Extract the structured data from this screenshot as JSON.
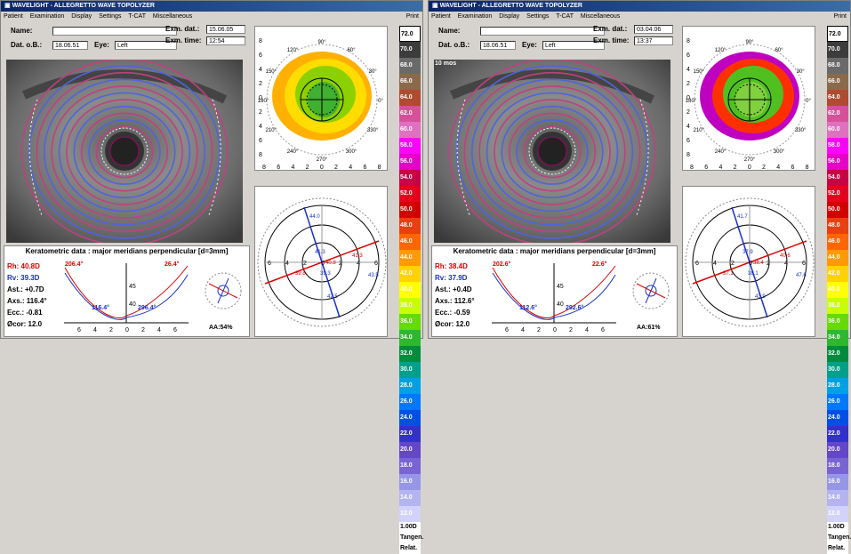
{
  "windows": [
    {
      "title": "WAVELIGHT - ALLEGRETTO WAVE TOPOLYZER",
      "menu": [
        "Patient",
        "Examination",
        "Display",
        "Settings",
        "T-CAT",
        "Miscellaneous"
      ],
      "print": "Print",
      "name_label": "Name:",
      "name": "",
      "dob_label": "Dat. o.B.:",
      "dob": "18.06.51",
      "eye_label": "Eye:",
      "eye": "Left",
      "exm_dat_label": "Exm. dat.:",
      "exm_dat": "15.06.05",
      "exm_time_label": "Exm. time:",
      "exm_time": "12:54",
      "tag": "",
      "kdata_title": "Keratometric data : major meridians perpendicular [d=3mm]",
      "rh": "Rh: 40.8D",
      "rv": "Rv: 39.3D",
      "ast": "Ast.: +0.7D",
      "axs": "Axs.: 116.4°",
      "ecc": "Ecc.: -0.81",
      "ocor": "Øcor: 12.0",
      "aa": "AA:54%",
      "k_top_left": "206.4°",
      "k_top_right": "26.4°",
      "k_bot_mid": "116.4°",
      "k_bot_right": "296.4°",
      "k_y45": "45",
      "k_y40": "40",
      "axis_labels": [
        "44.0",
        "41.3",
        "40.8",
        "39.3",
        "39.8",
        "41.3",
        "43.5",
        "42.5"
      ]
    },
    {
      "title": "WAVELIGHT - ALLEGRETTO WAVE TOPOLYZER",
      "menu": [
        "Patient",
        "Examination",
        "Display",
        "Settings",
        "T-CAT",
        "Miscellaneous"
      ],
      "print": "Print",
      "name_label": "Name:",
      "name": "",
      "dob_label": "Dat. o.B.:",
      "dob": "18.06.51",
      "eye_label": "Eye:",
      "eye": "Left",
      "exm_dat_label": "Exm. dat.:",
      "exm_dat": "03.04.06",
      "exm_time_label": "Exm. time:",
      "exm_time": "13:37",
      "tag": "10 mos",
      "kdata_title": "Keratometric data : major meridians perpendicular [d=3mm]",
      "rh": "Rh: 38.4D",
      "rv": "Rv: 37.9D",
      "ast": "Ast.: +0.4D",
      "axs": "Axs.: 112.6°",
      "ecc": "Ecc.: -0.59",
      "ocor": "Øcor: 12.0",
      "aa": "AA:61%",
      "k_top_left": "202.6°",
      "k_top_right": "22.6°",
      "k_bot_mid": "112.6°",
      "k_bot_right": "292.6°",
      "k_y45": "45",
      "k_y40": "40",
      "axis_labels": [
        "41.7",
        "37.9",
        "38.4",
        "38.1",
        "37.1",
        "40.6",
        "47.6",
        "43.9"
      ]
    }
  ],
  "scale": [
    {
      "v": "72.0",
      "c": "#ffffff",
      "sel": true
    },
    {
      "v": "70.0",
      "c": "#3c3c3c"
    },
    {
      "v": "68.0",
      "c": "#6a6a6a"
    },
    {
      "v": "66.0",
      "c": "#8a6a4a"
    },
    {
      "v": "64.0",
      "c": "#b04a30"
    },
    {
      "v": "62.0",
      "c": "#d6509a"
    },
    {
      "v": "60.0",
      "c": "#e070c0"
    },
    {
      "v": "58.0",
      "c": "#ff00ff"
    },
    {
      "v": "56.0",
      "c": "#e600c8"
    },
    {
      "v": "54.0",
      "c": "#c80046"
    },
    {
      "v": "52.0",
      "c": "#e6001e"
    },
    {
      "v": "50.0",
      "c": "#d30000"
    },
    {
      "v": "48.0",
      "c": "#e84010"
    },
    {
      "v": "46.0",
      "c": "#ff6600"
    },
    {
      "v": "44.0",
      "c": "#ff9a00"
    },
    {
      "v": "42.0",
      "c": "#ffd200"
    },
    {
      "v": "40.0",
      "c": "#ffff00"
    },
    {
      "v": "38.0",
      "c": "#c8ff00"
    },
    {
      "v": "36.0",
      "c": "#64dc00"
    },
    {
      "v": "34.0",
      "c": "#2eb82e"
    },
    {
      "v": "32.0",
      "c": "#008c3c"
    },
    {
      "v": "30.0",
      "c": "#00a08c"
    },
    {
      "v": "28.0",
      "c": "#00a0e6"
    },
    {
      "v": "26.0",
      "c": "#0078ff"
    },
    {
      "v": "24.0",
      "c": "#0050e6"
    },
    {
      "v": "22.0",
      "c": "#3232c8"
    },
    {
      "v": "20.0",
      "c": "#6446c8"
    },
    {
      "v": "18.0",
      "c": "#7864d2"
    },
    {
      "v": "16.0",
      "c": "#9696e6"
    },
    {
      "v": "14.0",
      "c": "#b4b4f0"
    },
    {
      "v": "12.0",
      "c": "#d2d2fa"
    }
  ],
  "scale_step": "1.00D",
  "scale_mode1": "Tangen.",
  "scale_mode2": "Relat.",
  "map_ticks": [
    "8",
    "6",
    "4",
    "2",
    "0",
    "2",
    "4",
    "6",
    "8"
  ],
  "map_angles": [
    "90°",
    "60°",
    "120°",
    "30°",
    "150°",
    "0°",
    "180°",
    "330°",
    "210°",
    "300°",
    "240°",
    "270°"
  ],
  "k_ticks": [
    "6",
    "4",
    "2",
    "0",
    "2",
    "4",
    "6"
  ]
}
